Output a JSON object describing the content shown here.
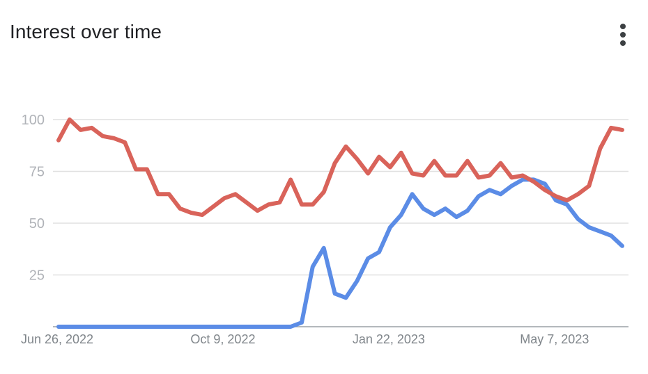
{
  "header": {
    "title": "Interest over time",
    "menu_icon": "more-vert-icon"
  },
  "chart_data": {
    "type": "line",
    "title": "Interest over time",
    "xlabel": "",
    "ylabel": "",
    "ylim": [
      0,
      100
    ],
    "yticks": [
      25,
      50,
      75,
      100
    ],
    "grid": true,
    "xtick_labels": [
      {
        "label": "Jun 26, 2022",
        "index": 0
      },
      {
        "label": "Oct 9, 2022",
        "index": 15
      },
      {
        "label": "Jan 22, 2023",
        "index": 30
      },
      {
        "label": "May 7, 2023",
        "index": 45
      }
    ],
    "series": [
      {
        "color": "#5b8ce6",
        "values": [
          0,
          0,
          0,
          0,
          0,
          0,
          0,
          0,
          0,
          0,
          0,
          0,
          0,
          0,
          0,
          0,
          0,
          0,
          0,
          0,
          0,
          0,
          2,
          29,
          38,
          16,
          14,
          22,
          33,
          36,
          48,
          54,
          64,
          57,
          54,
          57,
          53,
          56,
          63,
          66,
          64,
          68,
          71,
          71,
          69,
          61,
          59,
          52,
          48,
          46,
          44,
          39
        ]
      },
      {
        "color": "#d9635a",
        "values": [
          90,
          100,
          95,
          96,
          92,
          91,
          89,
          76,
          76,
          64,
          64,
          57,
          55,
          54,
          58,
          62,
          64,
          60,
          56,
          59,
          60,
          71,
          59,
          59,
          65,
          79,
          87,
          81,
          74,
          82,
          77,
          84,
          74,
          73,
          80,
          73,
          73,
          80,
          72,
          73,
          79,
          72,
          73,
          70,
          66,
          63,
          61,
          64,
          68,
          86,
          96,
          95
        ]
      }
    ]
  }
}
